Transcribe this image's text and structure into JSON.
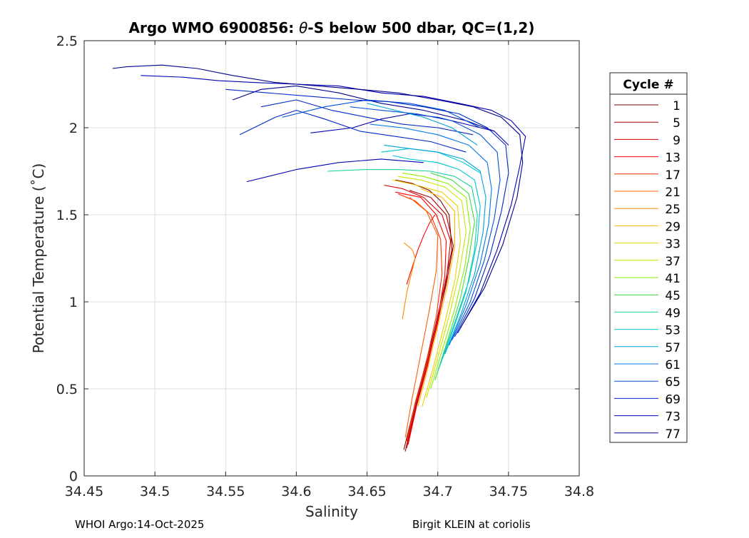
{
  "chart_data": {
    "type": "line",
    "title_prefix": "Argo WMO 6900856: ",
    "title_symbol": "θ",
    "title_suffix": "-S below 500 dbar,  QC=(1,2)",
    "xlabel": "Salinity",
    "ylabel": "Potential Temperature (˚C)",
    "xlim": [
      34.45,
      34.8
    ],
    "ylim": [
      0,
      2.5
    ],
    "xticks": [
      34.45,
      34.5,
      34.55,
      34.6,
      34.65,
      34.7,
      34.75,
      34.8
    ],
    "xtick_labels": [
      "34.45",
      "34.5",
      "34.55",
      "34.6",
      "34.65",
      "34.7",
      "34.75",
      "34.8"
    ],
    "yticks": [
      0,
      0.5,
      1,
      1.5,
      2,
      2.5
    ],
    "ytick_labels": [
      "0",
      "0.5",
      "1",
      "1.5",
      "2",
      "2.5"
    ],
    "grid": true,
    "legend_title": "Cycle #",
    "legend_position": "right-outside",
    "series": [
      {
        "name": "1",
        "color": "#800000",
        "points": [
          [
            34.676,
            0.15
          ],
          [
            34.682,
            0.35
          ],
          [
            34.69,
            0.6
          ],
          [
            34.698,
            0.85
          ],
          [
            34.705,
            1.1
          ],
          [
            34.71,
            1.3
          ],
          [
            34.708,
            1.5
          ],
          [
            34.702,
            1.58
          ],
          [
            34.694,
            1.64
          ],
          [
            34.682,
            1.68
          ],
          [
            34.67,
            1.7
          ]
        ]
      },
      {
        "name": "5",
        "color": "#a80000",
        "points": [
          [
            34.677,
            0.14
          ],
          [
            34.683,
            0.36
          ],
          [
            34.691,
            0.61
          ],
          [
            34.699,
            0.86
          ],
          [
            34.706,
            1.1
          ],
          [
            34.711,
            1.32
          ],
          [
            34.706,
            1.5
          ],
          [
            34.695,
            1.6
          ],
          [
            34.68,
            1.64
          ]
        ]
      },
      {
        "name": "9",
        "color": "#d40000",
        "points": [
          [
            34.678,
            0.16
          ],
          [
            34.684,
            0.38
          ],
          [
            34.692,
            0.62
          ],
          [
            34.7,
            0.88
          ],
          [
            34.706,
            1.12
          ],
          [
            34.709,
            1.35
          ],
          [
            34.703,
            1.5
          ],
          [
            34.69,
            1.6
          ],
          [
            34.675,
            1.65
          ],
          [
            34.662,
            1.67
          ]
        ]
      },
      {
        "name": "13",
        "color": "#ff0000",
        "points": [
          [
            34.679,
            0.18
          ],
          [
            34.685,
            0.4
          ],
          [
            34.693,
            0.64
          ],
          [
            34.7,
            0.9
          ],
          [
            34.705,
            1.15
          ],
          [
            34.706,
            1.35
          ],
          [
            34.699,
            1.5
          ],
          [
            34.688,
            1.6
          ],
          [
            34.67,
            1.63
          ]
        ]
      },
      {
        "name": "17",
        "color": "#ff2e00",
        "points": [
          [
            34.678,
            0.2
          ],
          [
            34.684,
            0.42
          ],
          [
            34.692,
            0.66
          ],
          [
            34.699,
            0.92
          ],
          [
            34.703,
            1.16
          ],
          [
            34.702,
            1.36
          ],
          [
            34.695,
            1.5
          ],
          [
            34.684,
            1.58
          ],
          [
            34.672,
            1.62
          ]
        ]
      },
      {
        "name": "21",
        "color": "#ff5c00",
        "points": [
          [
            34.677,
            0.22
          ],
          [
            34.682,
            0.45
          ],
          [
            34.688,
            0.7
          ],
          [
            34.694,
            0.95
          ],
          [
            34.699,
            1.18
          ],
          [
            34.7,
            1.38
          ],
          [
            34.692,
            1.52
          ],
          [
            34.68,
            1.6
          ]
        ]
      },
      {
        "name": "25",
        "color": "#ff8a00",
        "points": [
          [
            34.675,
            0.9
          ],
          [
            34.678,
            1.05
          ],
          [
            34.681,
            1.15
          ],
          [
            34.684,
            1.25
          ],
          [
            34.682,
            1.3
          ],
          [
            34.676,
            1.34
          ]
        ]
      },
      {
        "name": "29",
        "color": "#ffb800",
        "points": [
          [
            34.686,
            0.4
          ],
          [
            34.693,
            0.62
          ],
          [
            34.7,
            0.86
          ],
          [
            34.707,
            1.1
          ],
          [
            34.712,
            1.32
          ],
          [
            34.712,
            1.52
          ],
          [
            34.703,
            1.6
          ],
          [
            34.688,
            1.65
          ]
        ]
      },
      {
        "name": "33",
        "color": "#e6d500",
        "points": [
          [
            34.689,
            0.4
          ],
          [
            34.697,
            0.63
          ],
          [
            34.705,
            0.88
          ],
          [
            34.712,
            1.12
          ],
          [
            34.716,
            1.35
          ],
          [
            34.714,
            1.55
          ],
          [
            34.703,
            1.63
          ],
          [
            34.685,
            1.67
          ],
          [
            34.668,
            1.7
          ]
        ]
      },
      {
        "name": "37",
        "color": "#c8e600",
        "points": [
          [
            34.692,
            0.45
          ],
          [
            34.7,
            0.68
          ],
          [
            34.708,
            0.92
          ],
          [
            34.715,
            1.16
          ],
          [
            34.72,
            1.4
          ],
          [
            34.717,
            1.58
          ],
          [
            34.705,
            1.66
          ],
          [
            34.688,
            1.7
          ],
          [
            34.672,
            1.72
          ]
        ]
      },
      {
        "name": "41",
        "color": "#8cf000",
        "points": [
          [
            34.695,
            0.5
          ],
          [
            34.703,
            0.72
          ],
          [
            34.712,
            0.96
          ],
          [
            34.719,
            1.2
          ],
          [
            34.723,
            1.42
          ],
          [
            34.72,
            1.6
          ],
          [
            34.707,
            1.68
          ],
          [
            34.69,
            1.72
          ],
          [
            34.675,
            1.74
          ]
        ]
      },
      {
        "name": "45",
        "color": "#3cdc3c",
        "points": [
          [
            34.698,
            0.55
          ],
          [
            34.707,
            0.78
          ],
          [
            34.716,
            1.02
          ],
          [
            34.722,
            1.25
          ],
          [
            34.726,
            1.46
          ],
          [
            34.722,
            1.62
          ],
          [
            34.71,
            1.7
          ],
          [
            34.695,
            1.74
          ]
        ]
      },
      {
        "name": "49",
        "color": "#14d2a0",
        "points": [
          [
            34.7,
            0.6
          ],
          [
            34.71,
            0.82
          ],
          [
            34.72,
            1.06
          ],
          [
            34.726,
            1.3
          ],
          [
            34.728,
            1.5
          ],
          [
            34.724,
            1.66
          ],
          [
            34.712,
            1.72
          ],
          [
            34.695,
            1.75
          ],
          [
            34.672,
            1.76
          ],
          [
            34.648,
            1.76
          ],
          [
            34.622,
            1.75
          ]
        ]
      },
      {
        "name": "53",
        "color": "#00c8d2",
        "points": [
          [
            34.702,
            0.65
          ],
          [
            34.712,
            0.88
          ],
          [
            34.722,
            1.12
          ],
          [
            34.728,
            1.35
          ],
          [
            34.73,
            1.55
          ],
          [
            34.726,
            1.7
          ],
          [
            34.715,
            1.76
          ],
          [
            34.7,
            1.8
          ],
          [
            34.68,
            1.82
          ],
          [
            34.668,
            1.84
          ]
        ]
      },
      {
        "name": "57",
        "color": "#00a0dc",
        "points": [
          [
            34.705,
            0.7
          ],
          [
            34.716,
            0.92
          ],
          [
            34.726,
            1.16
          ],
          [
            34.732,
            1.4
          ],
          [
            34.734,
            1.6
          ],
          [
            34.73,
            1.75
          ],
          [
            34.718,
            1.82
          ],
          [
            34.7,
            1.86
          ],
          [
            34.68,
            1.88
          ],
          [
            34.662,
            1.9
          ]
        ]
      },
      {
        "name": "61",
        "color": "#0078e6",
        "points": [
          [
            34.708,
            0.75
          ],
          [
            34.72,
            0.98
          ],
          [
            34.73,
            1.22
          ],
          [
            34.736,
            1.45
          ],
          [
            34.738,
            1.65
          ],
          [
            34.735,
            1.8
          ],
          [
            34.722,
            1.9
          ],
          [
            34.7,
            1.96
          ],
          [
            34.675,
            2.0
          ],
          [
            34.652,
            2.02
          ]
        ]
      },
      {
        "name": "65",
        "color": "#0050dc",
        "points": [
          [
            34.71,
            0.78
          ],
          [
            34.723,
            1.0
          ],
          [
            34.733,
            1.24
          ],
          [
            34.74,
            1.48
          ],
          [
            34.744,
            1.7
          ],
          [
            34.742,
            1.86
          ],
          [
            34.73,
            1.96
          ],
          [
            34.71,
            2.04
          ],
          [
            34.685,
            2.08
          ],
          [
            34.66,
            2.1
          ],
          [
            34.638,
            2.12
          ]
        ]
      },
      {
        "name": "69",
        "color": "#0028c8",
        "points": [
          [
            34.712,
            0.8
          ],
          [
            34.726,
            1.02
          ],
          [
            34.737,
            1.27
          ],
          [
            34.745,
            1.52
          ],
          [
            34.75,
            1.74
          ],
          [
            34.748,
            1.9
          ],
          [
            34.735,
            2.0
          ],
          [
            34.715,
            2.08
          ],
          [
            34.69,
            2.12
          ],
          [
            34.665,
            2.15
          ],
          [
            34.64,
            2.16
          ],
          [
            34.61,
            2.18
          ],
          [
            34.58,
            2.2
          ],
          [
            34.55,
            2.22
          ]
        ]
      },
      {
        "name": "73",
        "color": "#0000b4",
        "points": [
          [
            34.714,
            0.82
          ],
          [
            34.73,
            1.05
          ],
          [
            34.742,
            1.3
          ],
          [
            34.752,
            1.56
          ],
          [
            34.758,
            1.78
          ],
          [
            34.762,
            1.95
          ],
          [
            34.752,
            2.04
          ],
          [
            34.738,
            2.1
          ],
          [
            34.715,
            2.14
          ],
          [
            34.69,
            2.18
          ],
          [
            34.66,
            2.2
          ],
          [
            34.63,
            2.24
          ],
          [
            34.6,
            2.25
          ],
          [
            34.57,
            2.26
          ],
          [
            34.545,
            2.27
          ],
          [
            34.52,
            2.29
          ],
          [
            34.49,
            2.3
          ]
        ]
      },
      {
        "name": "77",
        "color": "#00008c",
        "points": [
          [
            34.716,
            0.85
          ],
          [
            34.733,
            1.08
          ],
          [
            34.746,
            1.33
          ],
          [
            34.756,
            1.6
          ],
          [
            34.76,
            1.8
          ],
          [
            34.758,
            1.96
          ],
          [
            34.745,
            2.06
          ],
          [
            34.725,
            2.12
          ],
          [
            34.7,
            2.16
          ],
          [
            34.672,
            2.2
          ],
          [
            34.645,
            2.22
          ],
          [
            34.615,
            2.24
          ],
          [
            34.585,
            2.26
          ],
          [
            34.555,
            2.3
          ],
          [
            34.53,
            2.34
          ],
          [
            34.505,
            2.36
          ],
          [
            34.48,
            2.35
          ],
          [
            34.47,
            2.34
          ]
        ]
      }
    ]
  },
  "extra_lines": [
    {
      "color": "#0000b4",
      "points": [
        [
          34.565,
          1.69
        ],
        [
          34.6,
          1.76
        ],
        [
          34.63,
          1.8
        ],
        [
          34.66,
          1.82
        ],
        [
          34.69,
          1.8
        ]
      ]
    },
    {
      "color": "#0000b4",
      "points": [
        [
          34.61,
          1.97
        ],
        [
          34.64,
          2.0
        ],
        [
          34.66,
          2.05
        ],
        [
          34.68,
          2.08
        ],
        [
          34.7,
          2.06
        ],
        [
          34.72,
          2.02
        ],
        [
          34.74,
          1.98
        ],
        [
          34.75,
          1.9
        ]
      ]
    },
    {
      "color": "#0028c8",
      "points": [
        [
          34.56,
          1.96
        ],
        [
          34.585,
          2.06
        ],
        [
          34.6,
          2.1
        ],
        [
          34.62,
          2.05
        ],
        [
          34.645,
          1.98
        ],
        [
          34.67,
          1.95
        ],
        [
          34.695,
          1.92
        ],
        [
          34.72,
          1.86
        ]
      ]
    },
    {
      "color": "#0028c8",
      "points": [
        [
          34.575,
          2.12
        ],
        [
          34.6,
          2.16
        ],
        [
          34.625,
          2.1
        ],
        [
          34.65,
          2.06
        ],
        [
          34.675,
          2.02
        ],
        [
          34.7,
          2.0
        ],
        [
          34.725,
          1.96
        ]
      ]
    },
    {
      "color": "#00008c",
      "points": [
        [
          34.555,
          2.16
        ],
        [
          34.575,
          2.22
        ],
        [
          34.6,
          2.24
        ],
        [
          34.63,
          2.2
        ],
        [
          34.66,
          2.14
        ],
        [
          34.69,
          2.1
        ],
        [
          34.72,
          2.04
        ],
        [
          34.74,
          1.98
        ]
      ]
    },
    {
      "color": "#0050dc",
      "points": [
        [
          34.59,
          2.06
        ],
        [
          34.62,
          2.12
        ],
        [
          34.65,
          2.16
        ],
        [
          34.68,
          2.14
        ],
        [
          34.705,
          2.1
        ],
        [
          34.73,
          2.0
        ]
      ]
    },
    {
      "color": "#00a0dc",
      "points": [
        [
          34.65,
          2.14
        ],
        [
          34.67,
          2.1
        ],
        [
          34.69,
          2.06
        ],
        [
          34.71,
          2.0
        ],
        [
          34.728,
          1.9
        ]
      ]
    },
    {
      "color": "#00c8d2",
      "points": [
        [
          34.66,
          1.86
        ],
        [
          34.68,
          1.88
        ],
        [
          34.7,
          1.86
        ],
        [
          34.718,
          1.8
        ],
        [
          34.73,
          1.74
        ]
      ]
    },
    {
      "color": "#ff0000",
      "points": [
        [
          34.678,
          1.1
        ],
        [
          34.682,
          1.2
        ],
        [
          34.686,
          1.3
        ],
        [
          34.69,
          1.38
        ],
        [
          34.694,
          1.45
        ],
        [
          34.698,
          1.5
        ]
      ]
    }
  ],
  "footer": {
    "left": "WHOI Argo:14-Oct-2025",
    "right": "Birgit KLEIN at coriolis"
  }
}
